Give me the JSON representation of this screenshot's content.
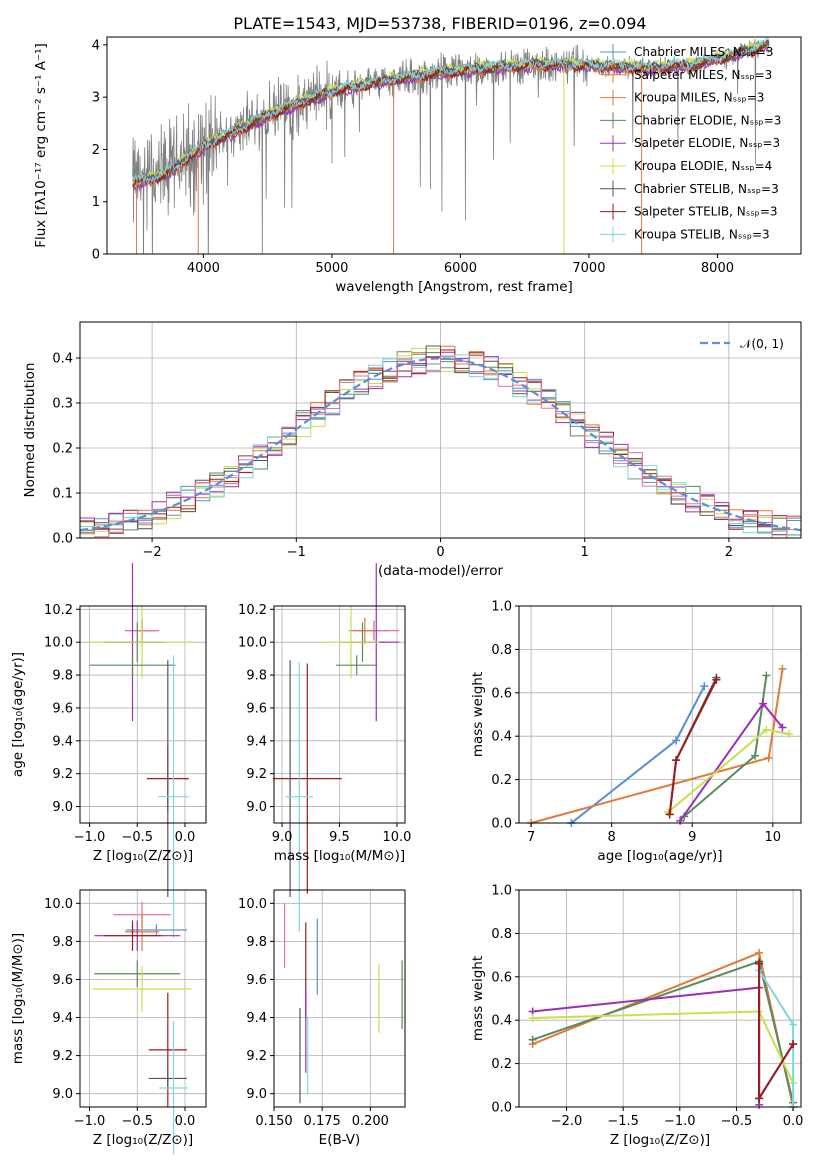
{
  "figure_title": "PLATE=1543, MJD=53738, FIBERID=0196, z=0.094",
  "chart_data": [
    {
      "id": "spectrum",
      "type": "line",
      "xlabel": "wavelength [Angstrom, rest frame]",
      "ylabel": "Flux [fλ10⁻¹⁷ erg cm⁻² s⁻¹ A⁻¹]",
      "xlim": [
        3250,
        8650
      ],
      "ylim": [
        0,
        4.15
      ],
      "xticks": [
        4000,
        5000,
        6000,
        7000,
        8000
      ],
      "yticks": [
        0,
        1,
        2,
        3,
        4
      ],
      "data_color": "#808080",
      "series": [
        {
          "name": "Chabrier MILES, Nₛₛₚ=3",
          "color": "#5b8fd6"
        },
        {
          "name": "Salpeter MILES, Nₛₛₚ=3",
          "color": "#e07b39"
        },
        {
          "name": "Kroupa MILES, Nₛₛₚ=3",
          "color": "#e07b39"
        },
        {
          "name": "Chabrier ELODIE, Nₛₛₚ=3",
          "color": "#5a8a5e"
        },
        {
          "name": "Salpeter ELODIE, Nₛₛₚ=3",
          "color": "#9b30b8"
        },
        {
          "name": "Kroupa ELODIE, Nₛₛₚ=4",
          "color": "#c8e04a"
        },
        {
          "name": "Chabrier STELIB, Nₛₛₚ=3",
          "color": "#555555"
        },
        {
          "name": "Salpeter STELIB, Nₛₛₚ=3",
          "color": "#9b1c1c"
        },
        {
          "name": "Kroupa STELIB, Nₛₛₚ=3",
          "color": "#7fd8e0"
        }
      ],
      "continuum": {
        "x": [
          3450,
          3700,
          4000,
          4300,
          4600,
          5000,
          5400,
          5800,
          6200,
          6600,
          7000,
          7400,
          7800,
          8200,
          8400
        ],
        "y": [
          1.35,
          1.5,
          2.05,
          2.4,
          2.75,
          3.1,
          3.3,
          3.45,
          3.55,
          3.62,
          3.6,
          3.55,
          3.6,
          3.85,
          4.0
        ]
      }
    },
    {
      "id": "residuals",
      "type": "step",
      "xlabel": "(data-model)/error",
      "ylabel": "Normed distribution",
      "xlim": [
        -2.5,
        2.5
      ],
      "ylim": [
        0,
        0.48
      ],
      "xticks": [
        -2,
        -1,
        0,
        1,
        2
      ],
      "yticks": [
        0.0,
        0.1,
        0.2,
        0.3,
        0.4
      ],
      "gaussian_label": "𝒩(0, 1)",
      "gaussian_color": "#5b8fd6"
    },
    {
      "id": "age_vs_Z",
      "type": "errorbar",
      "xlabel": "Z [log₁₀(Z/Z⊙)]",
      "ylabel": "age  [log₁₀(age/yr)]",
      "xlim": [
        -1.1,
        0.22
      ],
      "ylim": [
        8.9,
        10.22
      ],
      "xticks": [
        -1.0,
        -0.5,
        0.0
      ],
      "yticks": [
        9.0,
        9.2,
        9.4,
        9.6,
        9.8,
        10.0,
        10.2
      ],
      "points": [
        {
          "x": -0.45,
          "y": 10.07,
          "xerr": 0.12,
          "yerr": 0.07,
          "color": "#5b8fd6"
        },
        {
          "x": -0.45,
          "y": 10.07,
          "xerr": 0.18,
          "yerr": 0.07,
          "color": "#e07b39"
        },
        {
          "x": -0.45,
          "y": 10.07,
          "xerr": 0.15,
          "yerr": 0.06,
          "color": "#e8739a"
        },
        {
          "x": -0.5,
          "y": 10.0,
          "xerr": 0.3,
          "yerr": 0.12,
          "color": "#5a8a5e"
        },
        {
          "x": -0.55,
          "y": 10.0,
          "xerr": 0.3,
          "yerr": 0.48,
          "color": "#9b30b8"
        },
        {
          "x": -0.45,
          "y": 10.0,
          "xerr": 0.55,
          "yerr": 0.22,
          "color": "#c8e04a"
        },
        {
          "x": -0.55,
          "y": 9.86,
          "xerr": 0.45,
          "yerr": 0.07,
          "color": "#5a8a5e"
        },
        {
          "x": -0.18,
          "y": 9.17,
          "xerr": 0.22,
          "yerr": 0.2,
          "color": "#9b1c1c"
        },
        {
          "x": -0.18,
          "y": 9.17,
          "xerr": 0.01,
          "yerr": 0.72,
          "color": "#555555"
        },
        {
          "x": -0.12,
          "y": 9.06,
          "xerr": 0.16,
          "yerr": 0.86,
          "color": "#7fd8e0"
        }
      ]
    },
    {
      "id": "age_vs_mass",
      "type": "errorbar",
      "xlabel": "mass [log₁₀(M/M⊙)]",
      "ylabel": "",
      "xlim": [
        8.93,
        10.07
      ],
      "ylim": [
        8.9,
        10.22
      ],
      "xticks": [
        9.0,
        9.5,
        10.0
      ],
      "yticks": [
        9.0,
        9.2,
        9.4,
        9.6,
        9.8,
        10.0,
        10.2
      ],
      "points": [
        {
          "x": 9.8,
          "y": 10.07,
          "xerr": 0.12,
          "yerr": 0.06,
          "color": "#5b8fd6"
        },
        {
          "x": 9.8,
          "y": 10.07,
          "xerr": 0.22,
          "yerr": 0.06,
          "color": "#e8739a"
        },
        {
          "x": 9.72,
          "y": 10.07,
          "xerr": 0.1,
          "yerr": 0.08,
          "color": "#e07b39"
        },
        {
          "x": 9.7,
          "y": 10.0,
          "xerr": 0.2,
          "yerr": 0.12,
          "color": "#5a8a5e"
        },
        {
          "x": 9.82,
          "y": 10.0,
          "xerr": 0.2,
          "yerr": 0.48,
          "color": "#9b30b8"
        },
        {
          "x": 9.6,
          "y": 10.0,
          "xerr": 0.25,
          "yerr": 0.22,
          "color": "#c8e04a"
        },
        {
          "x": 9.65,
          "y": 9.86,
          "xerr": 0.18,
          "yerr": 0.06,
          "color": "#5a8a5e"
        },
        {
          "x": 9.22,
          "y": 9.17,
          "xerr": 0.3,
          "yerr": 0.7,
          "color": "#9b1c1c"
        },
        {
          "x": 9.07,
          "y": 9.17,
          "xerr": 0.01,
          "yerr": 0.72,
          "color": "#555555"
        },
        {
          "x": 9.15,
          "y": 9.06,
          "xerr": 0.12,
          "yerr": 0.82,
          "color": "#7fd8e0"
        }
      ]
    },
    {
      "id": "massweight_vs_age",
      "type": "line",
      "xlabel": "age  [log₁₀(age/yr)]",
      "ylabel": "mass weight",
      "xlim": [
        6.85,
        10.35
      ],
      "ylim": [
        0,
        1.0
      ],
      "xticks": [
        7,
        8,
        9,
        10
      ],
      "yticks": [
        0.0,
        0.2,
        0.4,
        0.6,
        0.8,
        1.0
      ],
      "series": [
        {
          "color": "#7fd8e0",
          "x": [
            7.5,
            8.8,
            9.15
          ],
          "y": [
            0.0,
            0.38,
            0.63
          ]
        },
        {
          "color": "#5b8fd6",
          "x": [
            7.5,
            8.8,
            9.15
          ],
          "y": [
            0.0,
            0.38,
            0.63
          ]
        },
        {
          "color": "#e07b39",
          "x": [
            7.0,
            9.95,
            10.12
          ],
          "y": [
            0.0,
            0.3,
            0.71
          ]
        },
        {
          "color": "#5a8a5e",
          "x": [
            8.9,
            9.78,
            9.92
          ],
          "y": [
            0.03,
            0.31,
            0.68
          ]
        },
        {
          "color": "#9b30b8",
          "x": [
            8.85,
            9.88,
            10.12
          ],
          "y": [
            0.01,
            0.55,
            0.44
          ]
        },
        {
          "color": "#c8e04a",
          "x": [
            8.7,
            9.92,
            10.2
          ],
          "y": [
            0.05,
            0.43,
            0.41
          ]
        },
        {
          "color": "#555555",
          "x": [
            8.72,
            8.8,
            9.3
          ],
          "y": [
            0.04,
            0.29,
            0.67
          ]
        },
        {
          "color": "#9b1c1c",
          "x": [
            8.72,
            8.8,
            9.3
          ],
          "y": [
            0.04,
            0.29,
            0.66
          ]
        }
      ]
    },
    {
      "id": "mass_vs_Z",
      "type": "errorbar",
      "xlabel": "Z [log₁₀(Z/Z⊙)]",
      "ylabel": "mass [log₁₀(M/M⊙)]",
      "xlim": [
        -1.1,
        0.22
      ],
      "ylim": [
        8.93,
        10.07
      ],
      "xticks": [
        -1.0,
        -0.5,
        0.0
      ],
      "yticks": [
        9.0,
        9.2,
        9.4,
        9.6,
        9.8,
        10.0
      ],
      "points": [
        {
          "x": -0.45,
          "y": 9.94,
          "xerr": 0.3,
          "yerr": 0.07,
          "color": "#e8739a"
        },
        {
          "x": -0.3,
          "y": 9.86,
          "xerr": 0.32,
          "yerr": 0.03,
          "color": "#5b8fd6"
        },
        {
          "x": -0.45,
          "y": 9.85,
          "xerr": 0.18,
          "yerr": 0.1,
          "color": "#e07b39"
        },
        {
          "x": -0.5,
          "y": 9.83,
          "xerr": 0.45,
          "yerr": 0.08,
          "color": "#9b30b8"
        },
        {
          "x": -0.55,
          "y": 9.83,
          "xerr": 0.3,
          "yerr": 0.08,
          "color": "#9b1c1c"
        },
        {
          "x": -0.5,
          "y": 9.63,
          "xerr": 0.45,
          "yerr": 0.07,
          "color": "#5a8a5e"
        },
        {
          "x": -0.45,
          "y": 9.55,
          "xerr": 0.52,
          "yerr": 0.12,
          "color": "#c8e04a"
        },
        {
          "x": -0.18,
          "y": 9.23,
          "xerr": 0.2,
          "yerr": 0.3,
          "color": "#9b1c1c"
        },
        {
          "x": -0.18,
          "y": 9.08,
          "xerr": 0.2,
          "yerr": 0.05,
          "color": "#555555"
        },
        {
          "x": -0.12,
          "y": 9.03,
          "xerr": 0.15,
          "yerr": 0.35,
          "color": "#7fd8e0"
        }
      ]
    },
    {
      "id": "mass_vs_EBV",
      "type": "errorbar",
      "xlabel": "E(B-V)",
      "ylabel": "",
      "xlim": [
        0.15,
        0.218
      ],
      "ylim": [
        8.93,
        10.07
      ],
      "xticks": [
        0.15,
        0.175,
        0.2
      ],
      "yticks": [
        9.0,
        9.2,
        9.4,
        9.6,
        9.8,
        10.0
      ],
      "points": [
        {
          "x": 0.1555,
          "y": 9.83,
          "yerr": 0.17,
          "color": "#e8739a"
        },
        {
          "x": 0.1725,
          "y": 9.72,
          "yerr": 0.2,
          "color": "#5b8fd6"
        },
        {
          "x": 0.1635,
          "y": 9.2,
          "yerr": 0.25,
          "color": "#555555"
        },
        {
          "x": 0.1665,
          "y": 9.65,
          "yerr": 0.25,
          "color": "#9b1c1c"
        },
        {
          "x": 0.1665,
          "y": 9.33,
          "yerr": 0.22,
          "color": "#9b30b8"
        },
        {
          "x": 0.1675,
          "y": 9.2,
          "yerr": 0.2,
          "color": "#7fd8e0"
        },
        {
          "x": 0.2045,
          "y": 9.5,
          "yerr": 0.18,
          "color": "#c8e04a"
        },
        {
          "x": 0.2165,
          "y": 9.52,
          "yerr": 0.18,
          "color": "#5a8a5e"
        }
      ]
    },
    {
      "id": "massweight_vs_Z",
      "type": "line",
      "xlabel": "Z [log₁₀(Z/Z⊙)]",
      "ylabel": "mass weight",
      "xlim": [
        -2.42,
        0.07
      ],
      "ylim": [
        0,
        1.0
      ],
      "xticks": [
        -2.0,
        -1.5,
        -1.0,
        -0.5,
        0.0
      ],
      "yticks": [
        0.0,
        0.2,
        0.4,
        0.6,
        0.8,
        1.0
      ],
      "series": [
        {
          "color": "#e07b39",
          "x": [
            -2.3,
            -0.3,
            0.0
          ],
          "y": [
            0.29,
            0.71,
            0.0
          ]
        },
        {
          "color": "#5a8a5e",
          "x": [
            -2.3,
            -0.3,
            0.0
          ],
          "y": [
            0.31,
            0.67,
            0.02
          ]
        },
        {
          "color": "#9b30b8",
          "x": [
            -2.3,
            -0.3,
            -0.3
          ],
          "y": [
            0.44,
            0.55,
            0.01
          ]
        },
        {
          "color": "#c8e04a",
          "x": [
            -2.3,
            -0.3,
            0.0
          ],
          "y": [
            0.41,
            0.44,
            0.11
          ]
        },
        {
          "color": "#7fd8e0",
          "x": [
            -0.3,
            0.0,
            0.0
          ],
          "y": [
            0.63,
            0.38,
            0.0
          ]
        },
        {
          "color": "#555555",
          "x": [
            -0.3,
            -0.3,
            0.0
          ],
          "y": [
            0.67,
            0.04,
            0.29
          ]
        },
        {
          "color": "#9b1c1c",
          "x": [
            -0.3,
            -0.3,
            0.0
          ],
          "y": [
            0.66,
            0.04,
            0.29
          ]
        }
      ]
    }
  ]
}
